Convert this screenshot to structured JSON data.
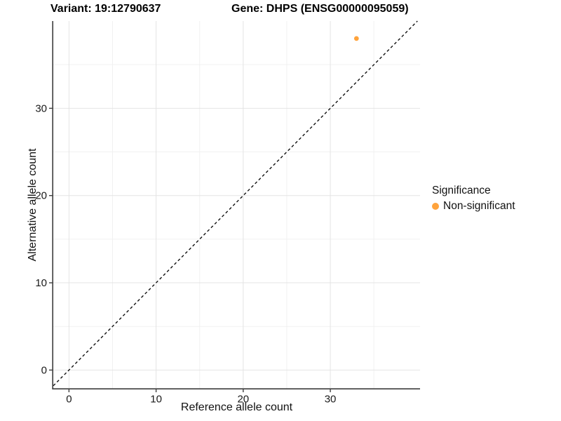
{
  "titles": {
    "variant": "Variant: 19:12790637",
    "gene": "Gene: DHPS (ENSG00000095059)"
  },
  "legend": {
    "title": "Significance",
    "items": [
      {
        "label": "Non-significant",
        "color": "#FFA33C"
      }
    ]
  },
  "colors": {
    "point": "#FFA33C",
    "axis_line": "#3c3c3c",
    "tick_label": "#1a1a1a",
    "grid_major": "#e4e4e4",
    "grid_minor": "#f1f1f1",
    "identity_line": "#111111",
    "background": "#ffffff"
  },
  "chart_data": {
    "type": "scatter",
    "title": "Variant: 19:12790637 — Gene: DHPS (ENSG00000095059)",
    "xlabel": "Reference allele count",
    "ylabel": "Alternative allele count",
    "xlim": [
      -1.8,
      40.3
    ],
    "ylim": [
      -2.1,
      40.0
    ],
    "x_ticks": [
      0,
      10,
      20,
      30
    ],
    "y_ticks": [
      0,
      10,
      20,
      30
    ],
    "x_minor_ticks": [
      5,
      15,
      25,
      35
    ],
    "y_minor_ticks": [
      5,
      15,
      25,
      35
    ],
    "grid": true,
    "legend_title": "Significance",
    "legend_position": "right",
    "series": [
      {
        "name": "Non-significant",
        "color": "#FFA33C",
        "points": [
          {
            "x": 33,
            "y": 38
          }
        ]
      }
    ],
    "reference_line": {
      "type": "identity y=x",
      "style": "dashed",
      "from": -1.8,
      "to": 40.0
    }
  }
}
